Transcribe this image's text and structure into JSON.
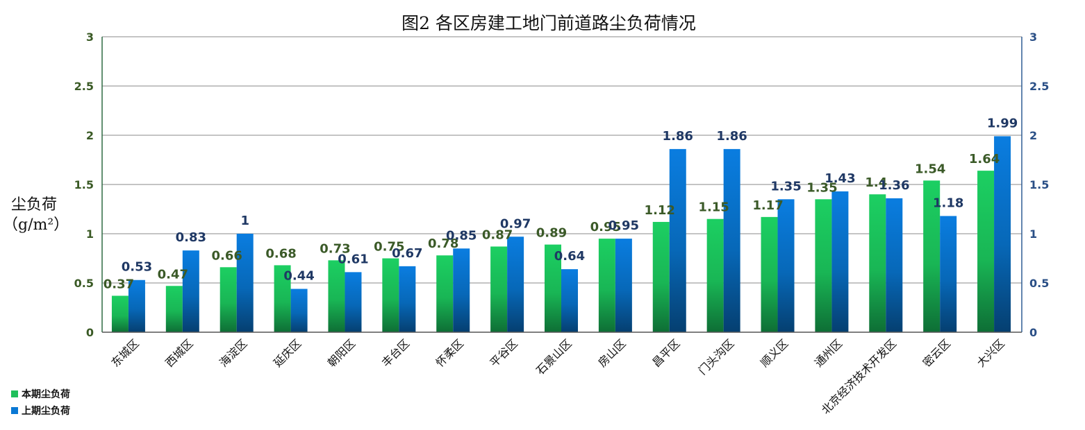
{
  "chart_data": {
    "type": "bar",
    "title": "图2   各区房建工地门前道路尘负荷情况",
    "ylabel_line1": "尘负荷",
    "ylabel_line2": "（g/m²）",
    "ylim": [
      0,
      3
    ],
    "yticks": [
      "0",
      "0.5",
      "1",
      "1.5",
      "2",
      "2.5",
      "3"
    ],
    "grid": true,
    "legend_position": "bottom-left",
    "categories": [
      "东城区",
      "西城区",
      "海淀区",
      "延庆区",
      "朝阳区",
      "丰台区",
      "怀柔区",
      "平谷区",
      "石景山区",
      "房山区",
      "昌平区",
      "门头沟区",
      "顺义区",
      "通州区",
      "北京经济技术开发区",
      "密云区",
      "大兴区"
    ],
    "series": [
      {
        "name": "本期尘负荷",
        "color": "#1fbf5a",
        "values": [
          0.37,
          0.47,
          0.66,
          0.68,
          0.73,
          0.75,
          0.78,
          0.87,
          0.89,
          0.95,
          1.12,
          1.15,
          1.17,
          1.35,
          1.4,
          1.54,
          1.64
        ],
        "labels": [
          "0.37",
          "0.47",
          "0.66",
          "0.68",
          "0.73",
          "0.75",
          "0.78",
          "0.87",
          "0.89",
          "0.95",
          "1.12",
          "1.15",
          "1.17",
          "1.35",
          "1.4",
          "1.54",
          "1.64"
        ]
      },
      {
        "name": "上期尘负荷",
        "color": "#0a78d4",
        "values": [
          0.53,
          0.83,
          1.0,
          0.44,
          0.61,
          0.67,
          0.85,
          0.97,
          0.64,
          0.95,
          1.86,
          1.86,
          1.35,
          1.43,
          1.36,
          1.18,
          1.99
        ],
        "labels": [
          "0.53",
          "0.83",
          "1",
          "0.44",
          "0.61",
          "0.67",
          "0.85",
          "0.97",
          "0.64",
          "0.95",
          "1.86",
          "1.86",
          "1.35",
          "1.43",
          "1.36",
          "1.18",
          "1.99"
        ]
      }
    ]
  }
}
